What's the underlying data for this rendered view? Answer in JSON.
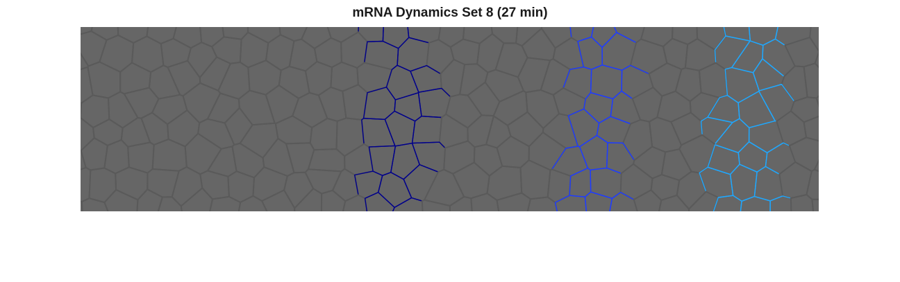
{
  "title": "mRNA Dynamics Set 8 (27 min)",
  "colors": {
    "background": "#666666",
    "cell_edge": "#5a5a5a",
    "stripe_1": "#00008b",
    "stripe_2": "#1e3cff",
    "stripe_3": "#1fa8ff"
  }
}
